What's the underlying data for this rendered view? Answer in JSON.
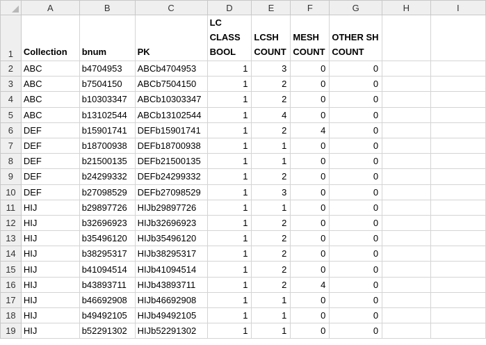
{
  "columns": [
    "A",
    "B",
    "C",
    "D",
    "E",
    "F",
    "G",
    "H",
    "I"
  ],
  "header_row": {
    "row_num": "1",
    "cells": [
      "Collection",
      "bnum",
      "PK",
      "LC CLASS BOOL",
      "LCSH COUNT",
      "MESH COUNT",
      "OTHER SH COUNT",
      "",
      ""
    ]
  },
  "rows": [
    {
      "row_num": "2",
      "collection": "ABC",
      "bnum": "b4704953",
      "pk": "ABCb4704953",
      "lc_class_bool": "1",
      "lcsh_count": "3",
      "mesh_count": "0",
      "other_sh_count": "0"
    },
    {
      "row_num": "3",
      "collection": "ABC",
      "bnum": "b7504150",
      "pk": "ABCb7504150",
      "lc_class_bool": "1",
      "lcsh_count": "2",
      "mesh_count": "0",
      "other_sh_count": "0"
    },
    {
      "row_num": "4",
      "collection": "ABC",
      "bnum": "b10303347",
      "pk": "ABCb10303347",
      "lc_class_bool": "1",
      "lcsh_count": "2",
      "mesh_count": "0",
      "other_sh_count": "0"
    },
    {
      "row_num": "5",
      "collection": "ABC",
      "bnum": "b13102544",
      "pk": "ABCb13102544",
      "lc_class_bool": "1",
      "lcsh_count": "4",
      "mesh_count": "0",
      "other_sh_count": "0"
    },
    {
      "row_num": "6",
      "collection": "DEF",
      "bnum": "b15901741",
      "pk": "DEFb15901741",
      "lc_class_bool": "1",
      "lcsh_count": "2",
      "mesh_count": "4",
      "other_sh_count": "0"
    },
    {
      "row_num": "7",
      "collection": "DEF",
      "bnum": "b18700938",
      "pk": "DEFb18700938",
      "lc_class_bool": "1",
      "lcsh_count": "1",
      "mesh_count": "0",
      "other_sh_count": "0"
    },
    {
      "row_num": "8",
      "collection": "DEF",
      "bnum": "b21500135",
      "pk": "DEFb21500135",
      "lc_class_bool": "1",
      "lcsh_count": "1",
      "mesh_count": "0",
      "other_sh_count": "0"
    },
    {
      "row_num": "9",
      "collection": "DEF",
      "bnum": "b24299332",
      "pk": "DEFb24299332",
      "lc_class_bool": "1",
      "lcsh_count": "2",
      "mesh_count": "0",
      "other_sh_count": "0"
    },
    {
      "row_num": "10",
      "collection": "DEF",
      "bnum": "b27098529",
      "pk": "DEFb27098529",
      "lc_class_bool": "1",
      "lcsh_count": "3",
      "mesh_count": "0",
      "other_sh_count": "0"
    },
    {
      "row_num": "11",
      "collection": "HIJ",
      "bnum": "b29897726",
      "pk": "HIJb29897726",
      "lc_class_bool": "1",
      "lcsh_count": "1",
      "mesh_count": "0",
      "other_sh_count": "0"
    },
    {
      "row_num": "12",
      "collection": "HIJ",
      "bnum": "b32696923",
      "pk": "HIJb32696923",
      "lc_class_bool": "1",
      "lcsh_count": "2",
      "mesh_count": "0",
      "other_sh_count": "0"
    },
    {
      "row_num": "13",
      "collection": "HIJ",
      "bnum": "b35496120",
      "pk": "HIJb35496120",
      "lc_class_bool": "1",
      "lcsh_count": "2",
      "mesh_count": "0",
      "other_sh_count": "0"
    },
    {
      "row_num": "14",
      "collection": "HIJ",
      "bnum": "b38295317",
      "pk": "HIJb38295317",
      "lc_class_bool": "1",
      "lcsh_count": "2",
      "mesh_count": "0",
      "other_sh_count": "0"
    },
    {
      "row_num": "15",
      "collection": "HIJ",
      "bnum": "b41094514",
      "pk": "HIJb41094514",
      "lc_class_bool": "1",
      "lcsh_count": "2",
      "mesh_count": "0",
      "other_sh_count": "0"
    },
    {
      "row_num": "16",
      "collection": "HIJ",
      "bnum": "b43893711",
      "pk": "HIJb43893711",
      "lc_class_bool": "1",
      "lcsh_count": "2",
      "mesh_count": "4",
      "other_sh_count": "0"
    },
    {
      "row_num": "17",
      "collection": "HIJ",
      "bnum": "b46692908",
      "pk": "HIJb46692908",
      "lc_class_bool": "1",
      "lcsh_count": "1",
      "mesh_count": "0",
      "other_sh_count": "0"
    },
    {
      "row_num": "18",
      "collection": "HIJ",
      "bnum": "b49492105",
      "pk": "HIJb49492105",
      "lc_class_bool": "1",
      "lcsh_count": "1",
      "mesh_count": "0",
      "other_sh_count": "0"
    },
    {
      "row_num": "19",
      "collection": "HIJ",
      "bnum": "b52291302",
      "pk": "HIJb52291302",
      "lc_class_bool": "1",
      "lcsh_count": "1",
      "mesh_count": "0",
      "other_sh_count": "0"
    }
  ]
}
